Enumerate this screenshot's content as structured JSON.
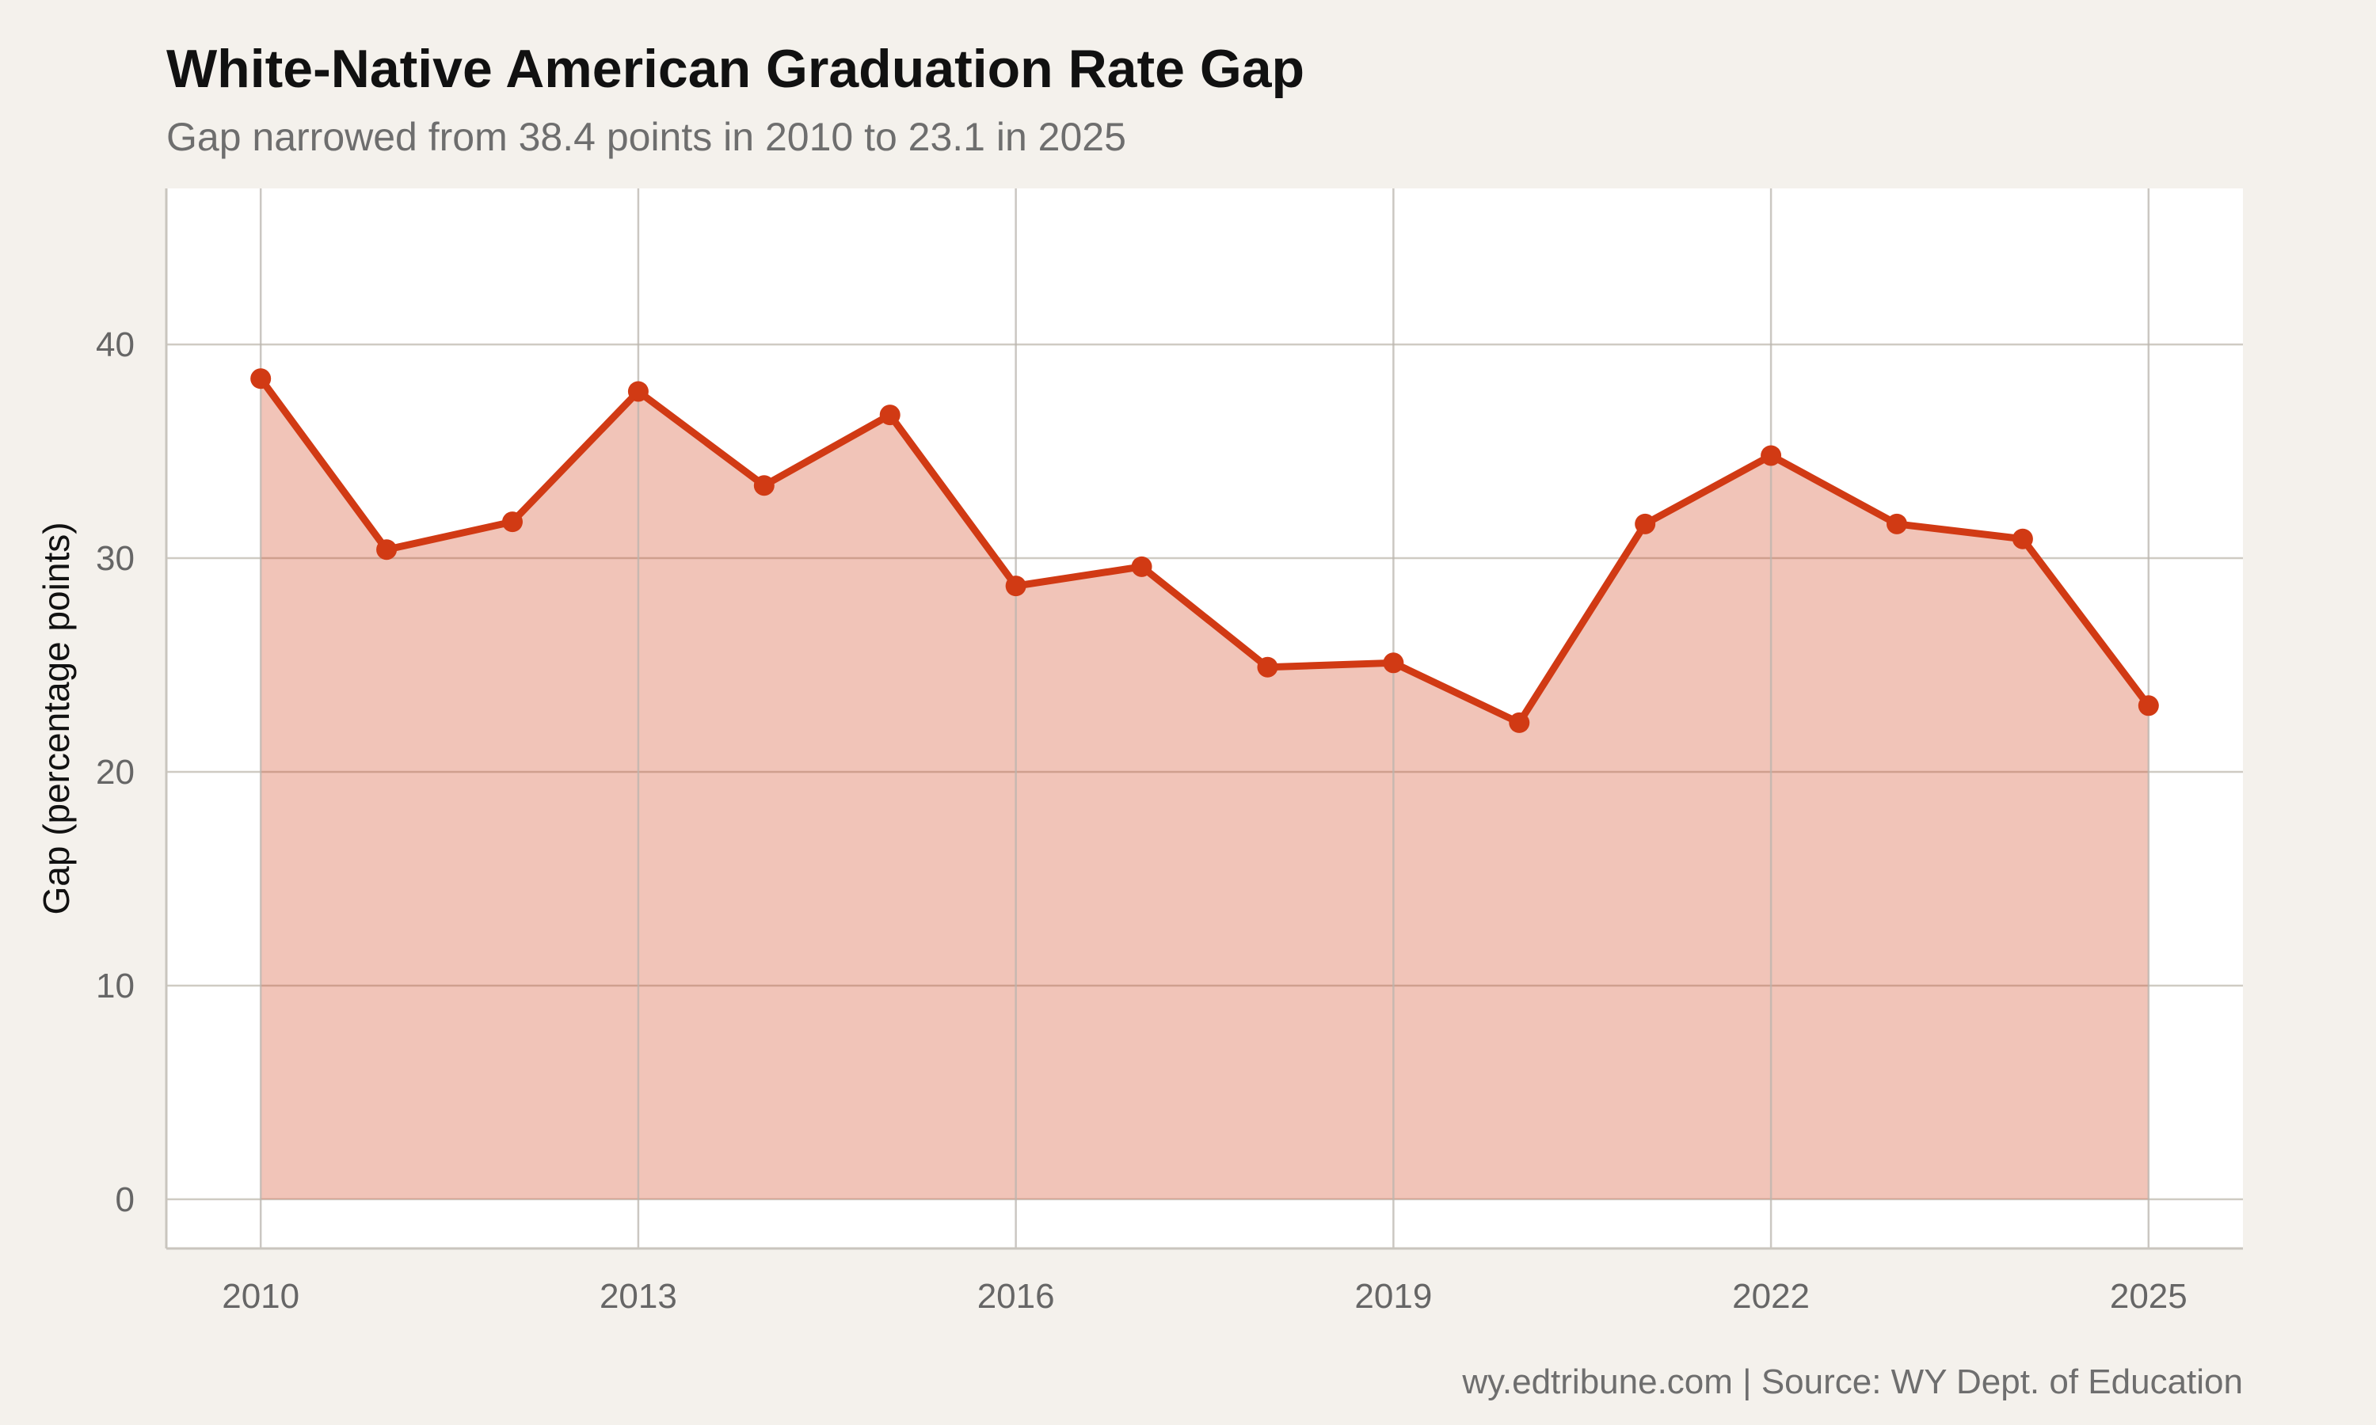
{
  "chart_data": {
    "type": "area",
    "title": "White-Native American Graduation Rate Gap",
    "subtitle": "Gap narrowed from 38.4 points in 2010 to 23.1 in 2025",
    "xlabel": "",
    "ylabel": "Gap (percentage points)",
    "caption": "wy.edtribune.com | Source: WY Dept. of Education",
    "x": [
      2010,
      2011,
      2012,
      2013,
      2014,
      2015,
      2016,
      2017,
      2018,
      2019,
      2020,
      2021,
      2022,
      2023,
      2024,
      2025
    ],
    "values": [
      38.4,
      30.4,
      31.7,
      37.8,
      33.4,
      36.7,
      28.7,
      29.6,
      24.9,
      25.1,
      22.3,
      31.6,
      34.8,
      31.6,
      30.9,
      23.1
    ],
    "x_ticks": [
      2010,
      2013,
      2016,
      2019,
      2022,
      2025
    ],
    "y_ticks": [
      0,
      10,
      20,
      30,
      40
    ],
    "xlim": [
      2009.25,
      2025.75
    ],
    "ylim": [
      -2.3,
      47.3
    ],
    "grid": true,
    "colors": {
      "line": "#d13a14",
      "area": "#f1c3b7",
      "panel": "#ffffff",
      "background": "#f4f1ec",
      "grid": "#cfcbc3"
    }
  }
}
